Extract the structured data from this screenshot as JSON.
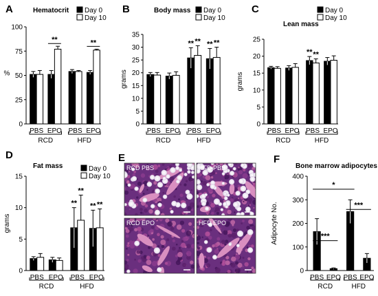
{
  "series_legend": [
    "Day 0",
    "Day 10"
  ],
  "chart_data": [
    {
      "id": "A",
      "type": "bar",
      "title": "Hematocrit",
      "ylabel": "%",
      "ylim": [
        0,
        100
      ],
      "yticks": [
        0,
        25,
        50,
        75,
        100
      ],
      "categories": [
        "PBS",
        "EPO",
        "PBS",
        "EPO"
      ],
      "groups": [
        "RCD",
        "HFD"
      ],
      "series": [
        {
          "name": "Day 0",
          "values": [
            51,
            51,
            54,
            53
          ],
          "errors": [
            3,
            4,
            2,
            2
          ]
        },
        {
          "name": "Day 10",
          "values": [
            51,
            77,
            54,
            76
          ],
          "errors": [
            4,
            3,
            1,
            1
          ]
        }
      ],
      "significance": [
        {
          "label": "**",
          "category": 1
        },
        {
          "label": "**",
          "category": 3
        }
      ]
    },
    {
      "id": "B",
      "type": "bar",
      "title": "Body mass",
      "ylabel": "grams",
      "ylim": [
        0,
        35
      ],
      "yticks": [
        0,
        5,
        10,
        15,
        20,
        25,
        30,
        35
      ],
      "categories": [
        "PBS",
        "EPO",
        "PBS",
        "EPO"
      ],
      "groups": [
        "RCD",
        "HFD"
      ],
      "series": [
        {
          "name": "Day 0",
          "values": [
            19.3,
            18.7,
            25.8,
            25.5
          ],
          "errors": [
            0.8,
            1.2,
            4.0,
            4.0
          ]
        },
        {
          "name": "Day 10",
          "values": [
            19.1,
            19.0,
            26.8,
            26.0
          ],
          "errors": [
            1.0,
            1.4,
            3.8,
            4.0
          ]
        }
      ],
      "star_labels": [
        "**",
        "**",
        "**",
        "**"
      ]
    },
    {
      "id": "C",
      "type": "bar",
      "title": "Lean mass",
      "ylabel": "grams",
      "ylim": [
        0,
        25
      ],
      "yticks": [
        0,
        5,
        10,
        15,
        20,
        25
      ],
      "categories": [
        "PBS",
        "EPO",
        "PBS",
        "EPO"
      ],
      "groups": [
        "RCD",
        "HFD"
      ],
      "series": [
        {
          "name": "Day 0",
          "values": [
            16.6,
            16.5,
            18.7,
            18.5
          ],
          "errors": [
            0.4,
            0.7,
            1.2,
            1.1
          ]
        },
        {
          "name": "Day 10",
          "values": [
            16.4,
            16.7,
            18.0,
            18.8
          ],
          "errors": [
            0.5,
            1.1,
            1.2,
            1.3
          ]
        }
      ],
      "star_labels": [
        "**",
        "**"
      ]
    },
    {
      "id": "D",
      "type": "bar",
      "title": "Fat mass",
      "ylabel": "grams",
      "ylim": [
        0,
        15
      ],
      "yticks": [
        0,
        5,
        10,
        15
      ],
      "categories": [
        "PBS",
        "EPO",
        "PBS",
        "EPO"
      ],
      "groups": [
        "RCD",
        "HFD"
      ],
      "series": [
        {
          "name": "Day 0",
          "values": [
            1.9,
            1.7,
            6.8,
            6.7
          ],
          "errors": [
            0.3,
            0.4,
            3.2,
            2.9
          ]
        },
        {
          "name": "Day 10",
          "values": [
            2.1,
            1.6,
            8.0,
            6.8
          ],
          "errors": [
            0.6,
            0.4,
            4.0,
            3.0
          ]
        }
      ],
      "star_labels": [
        "**",
        "**",
        "**",
        "**"
      ]
    },
    {
      "id": "F",
      "type": "bar",
      "title": "Bone marrow adipocytes",
      "ylabel": "Adipocyte No.",
      "ylim": [
        0,
        400
      ],
      "yticks": [
        0,
        100,
        200,
        300,
        400
      ],
      "categories": [
        "PBS",
        "EPO",
        "PBS",
        "EPO"
      ],
      "groups": [
        "RCD",
        "HFD"
      ],
      "series": [
        {
          "name": "",
          "values": [
            165,
            8,
            250,
            52
          ],
          "errors": [
            55,
            3,
            50,
            20
          ]
        }
      ],
      "significance": [
        {
          "label": "***",
          "between": [
            0,
            1
          ]
        },
        {
          "label": "***",
          "between": [
            2,
            3
          ]
        },
        {
          "label": "*",
          "between": [
            0,
            2
          ]
        }
      ]
    }
  ],
  "histology": {
    "letter": "E",
    "panels": [
      "RCD PBS",
      "HFD PBS",
      "RCD EPO",
      "HFD EPO"
    ]
  }
}
